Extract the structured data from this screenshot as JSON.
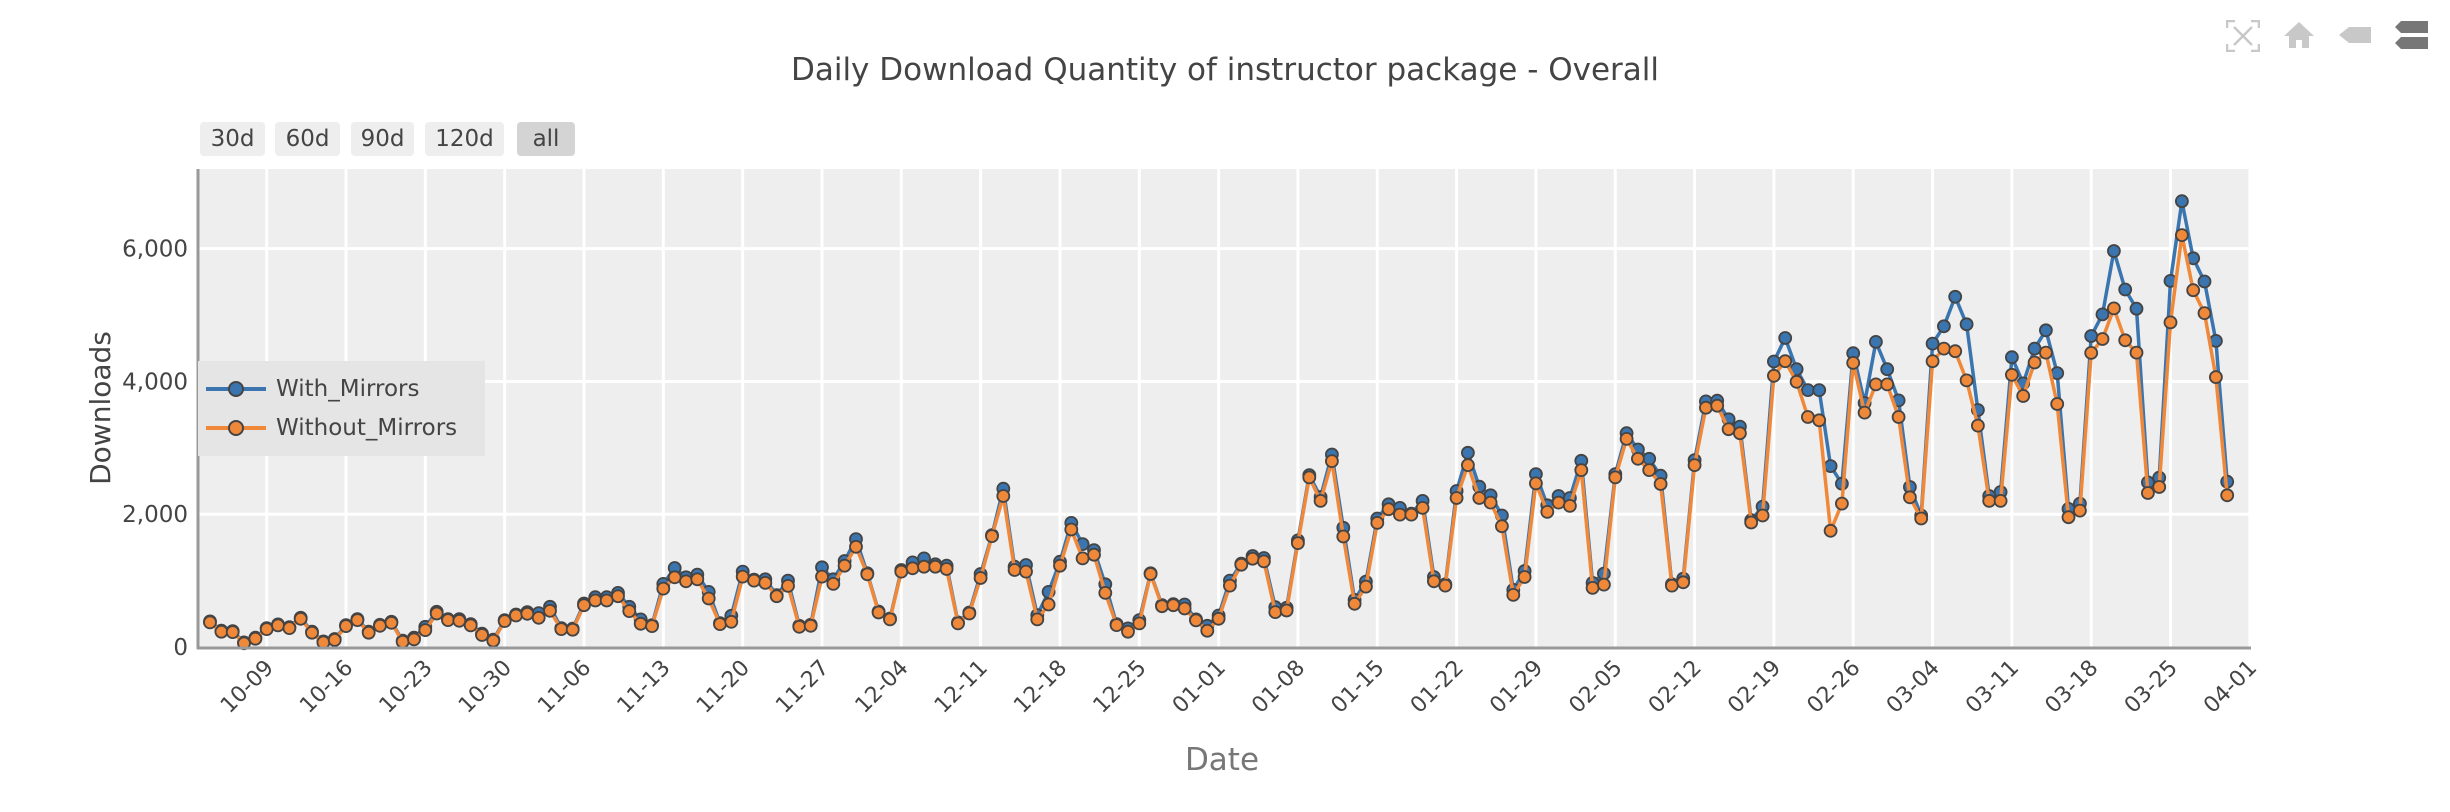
{
  "title": "Daily Download Quantity of instructor package - Overall",
  "range_buttons": [
    {
      "label": "30d",
      "active": false
    },
    {
      "label": "60d",
      "active": false
    },
    {
      "label": "90d",
      "active": false
    },
    {
      "label": "120d",
      "active": false
    },
    {
      "label": "all",
      "active": true
    }
  ],
  "modebar": [
    "autoscale-icon",
    "reset-axes-home-icon",
    "show-closest-hover-icon",
    "compare-hover-icon"
  ],
  "chart_data": {
    "type": "line",
    "title": "Daily Download Quantity of instructor package - Overall",
    "xlabel": "Date",
    "ylabel": "Downloads",
    "ylim": [
      0,
      7200
    ],
    "xlim": [
      "10-03",
      "04-01"
    ],
    "grid": true,
    "legend_position": "left-middle",
    "markers": true,
    "y_ticks": [
      "0",
      "2,000",
      "4,000",
      "6,000"
    ],
    "y_tick_values": [
      0,
      2000,
      4000,
      6000
    ],
    "x_ticks": [
      "10-09",
      "10-16",
      "10-23",
      "10-30",
      "11-06",
      "11-13",
      "11-20",
      "11-27",
      "12-04",
      "12-11",
      "12-18",
      "12-25",
      "01-01",
      "01-08",
      "01-15",
      "01-22",
      "01-29",
      "02-05",
      "02-12",
      "02-19",
      "02-26",
      "03-04",
      "03-11",
      "03-18",
      "03-25",
      "04-01"
    ],
    "x": [
      "10-04",
      "10-05",
      "10-06",
      "10-07",
      "10-08",
      "10-09",
      "10-10",
      "10-11",
      "10-12",
      "10-13",
      "10-14",
      "10-15",
      "10-16",
      "10-17",
      "10-18",
      "10-19",
      "10-20",
      "10-21",
      "10-22",
      "10-23",
      "10-24",
      "10-25",
      "10-26",
      "10-27",
      "10-28",
      "10-29",
      "10-30",
      "10-31",
      "11-01",
      "11-02",
      "11-03",
      "11-04",
      "11-05",
      "11-06",
      "11-07",
      "11-08",
      "11-09",
      "11-10",
      "11-11",
      "11-12",
      "11-13",
      "11-14",
      "11-15",
      "11-16",
      "11-17",
      "11-18",
      "11-19",
      "11-20",
      "11-21",
      "11-22",
      "11-23",
      "11-24",
      "11-25",
      "11-26",
      "11-27",
      "11-28",
      "11-29",
      "11-30",
      "12-01",
      "12-02",
      "12-03",
      "12-04",
      "12-05",
      "12-06",
      "12-07",
      "12-08",
      "12-09",
      "12-10",
      "12-11",
      "12-12",
      "12-13",
      "12-14",
      "12-15",
      "12-16",
      "12-17",
      "12-18",
      "12-19",
      "12-20",
      "12-21",
      "12-22",
      "12-23",
      "12-24",
      "12-25",
      "12-26",
      "12-27",
      "12-28",
      "12-29",
      "12-30",
      "12-31",
      "01-01",
      "01-02",
      "01-03",
      "01-04",
      "01-05",
      "01-06",
      "01-07",
      "01-08",
      "01-09",
      "01-10",
      "01-11",
      "01-12",
      "01-13",
      "01-14",
      "01-15",
      "01-16",
      "01-17",
      "01-18",
      "01-19",
      "01-20",
      "01-21",
      "01-22",
      "01-23",
      "01-24",
      "01-25",
      "01-26",
      "01-27",
      "01-28",
      "01-29",
      "01-30",
      "01-31",
      "02-01",
      "02-02",
      "02-03",
      "02-04",
      "02-05",
      "02-06",
      "02-07",
      "02-08",
      "02-09",
      "02-10",
      "02-11",
      "02-12",
      "02-13",
      "02-14",
      "02-15",
      "02-16",
      "02-17",
      "02-18",
      "02-19",
      "02-20",
      "02-21",
      "02-22",
      "02-23",
      "02-24",
      "02-25",
      "02-26",
      "02-27",
      "02-28",
      "02-29",
      "03-01",
      "03-02",
      "03-03",
      "03-04",
      "03-05",
      "03-06",
      "03-07",
      "03-08",
      "03-09",
      "03-10",
      "03-11",
      "03-12",
      "03-13",
      "03-14",
      "03-15",
      "03-16",
      "03-17",
      "03-18",
      "03-19",
      "03-20",
      "03-21",
      "03-22",
      "03-23",
      "03-24",
      "03-25",
      "03-26",
      "03-27",
      "03-28",
      "03-29",
      "03-30"
    ],
    "series": [
      {
        "name": "With_Mirrors",
        "color": "#3a75b0",
        "values": [
          385,
          245,
          240,
          70,
          140,
          285,
          340,
          300,
          440,
          230,
          85,
          120,
          330,
          420,
          230,
          335,
          380,
          95,
          140,
          305,
          530,
          420,
          420,
          345,
          200,
          110,
          405,
          490,
          525,
          510,
          605,
          285,
          275,
          655,
          750,
          750,
          815,
          605,
          415,
          330,
          950,
          1190,
          1050,
          1090,
          830,
          360,
          470,
          1135,
          1015,
          1020,
          780,
          1000,
          320,
          335,
          1200,
          1020,
          1295,
          1625,
          1110,
          535,
          430,
          1160,
          1275,
          1335,
          1245,
          1225,
          370,
          520,
          1100,
          1685,
          2385,
          1210,
          1235,
          480,
          830,
          1285,
          1870,
          1550,
          1460,
          945,
          345,
          280,
          405,
          1110,
          630,
          645,
          640,
          415,
          320,
          475,
          1000,
          1255,
          1370,
          1340,
          600,
          590,
          1605,
          2590,
          2260,
          2900,
          1795,
          710,
          985,
          1935,
          2150,
          2095,
          2010,
          2200,
          1055,
          945,
          2350,
          2925,
          2415,
          2285,
          1980,
          860,
          1145,
          2605,
          2135,
          2275,
          2245,
          2805,
          965,
          1105,
          2605,
          3220,
          2975,
          2835,
          2580,
          945,
          1030,
          2815,
          3700,
          3710,
          3430,
          3320,
          1910,
          2115,
          4300,
          4655,
          4185,
          3870,
          3870,
          2725,
          2460,
          4425,
          3675,
          4595,
          4185,
          3715,
          2410,
          1980,
          4570,
          4830,
          5275,
          4860,
          3570,
          2275,
          2335,
          4365,
          3970,
          4495,
          4770,
          4125,
          2080,
          2160,
          4685,
          5010,
          5965,
          5385,
          5095,
          2480,
          2550,
          5515,
          6715,
          5855,
          5505,
          4610,
          2490
        ]
      },
      {
        "name": "Without_Mirrors",
        "color": "#f0883a",
        "values": [
          370,
          230,
          225,
          55,
          125,
          270,
          325,
          285,
          425,
          215,
          70,
          105,
          315,
          405,
          215,
          320,
          365,
          80,
          115,
          255,
          505,
          405,
          395,
          325,
          180,
          95,
          390,
          475,
          500,
          440,
          545,
          270,
          260,
          630,
          700,
          700,
          765,
          540,
          350,
          315,
          880,
          1050,
          990,
          1020,
          730,
          345,
          380,
          1060,
          1000,
          965,
          765,
          920,
          305,
          320,
          1060,
          950,
          1225,
          1510,
          1095,
          520,
          415,
          1135,
          1185,
          1210,
          1210,
          1175,
          355,
          505,
          1040,
          1670,
          2275,
          1160,
          1135,
          415,
          640,
          1225,
          1770,
          1335,
          1390,
          815,
          330,
          230,
          355,
          1100,
          615,
          630,
          580,
          400,
          245,
          425,
          925,
          1240,
          1330,
          1290,
          525,
          550,
          1565,
          2555,
          2200,
          2800,
          1665,
          650,
          910,
          1870,
          2075,
          1995,
          1995,
          2095,
          990,
          925,
          2245,
          2740,
          2245,
          2175,
          1820,
          785,
          1055,
          2465,
          2035,
          2175,
          2125,
          2665,
          890,
          940,
          2555,
          3135,
          2835,
          2665,
          2455,
          925,
          975,
          2740,
          3605,
          3635,
          3280,
          3220,
          1875,
          1980,
          4085,
          4305,
          3995,
          3465,
          3415,
          1750,
          2160,
          4280,
          3530,
          3955,
          3955,
          3465,
          2255,
          1935,
          4305,
          4495,
          4455,
          4015,
          3335,
          2200,
          2200,
          4100,
          3780,
          4285,
          4435,
          3660,
          1955,
          2055,
          4430,
          4640,
          5100,
          4620,
          4435,
          2320,
          2410,
          4890,
          6205,
          5375,
          5030,
          4065,
          2285
        ]
      }
    ]
  }
}
